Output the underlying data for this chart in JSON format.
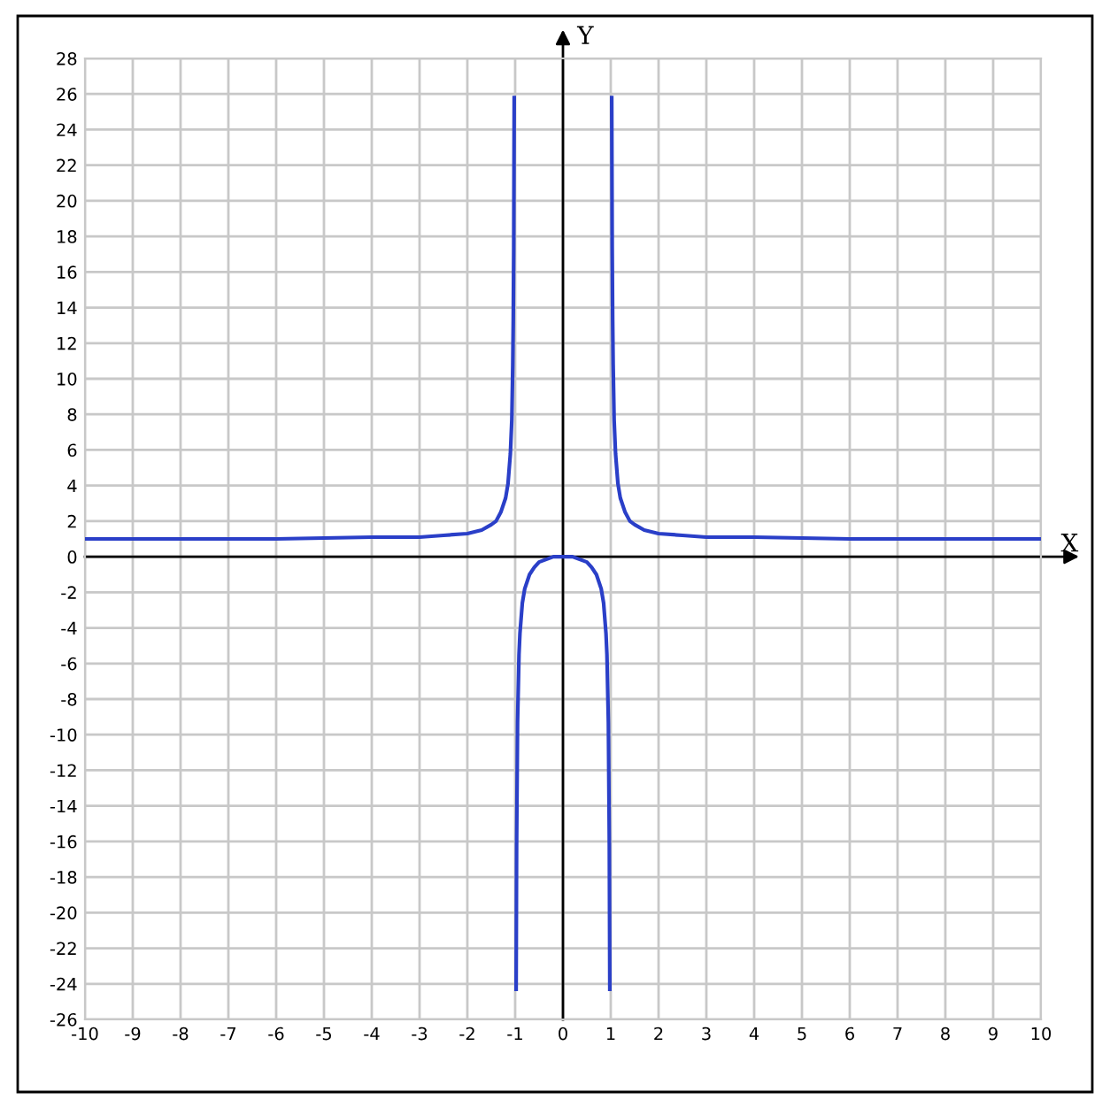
{
  "chart_data": {
    "type": "line",
    "xlabel": "X",
    "ylabel": "Y",
    "xlim": [
      -10,
      10
    ],
    "ylim": [
      -26,
      28
    ],
    "xticks": [
      -10,
      -9,
      -8,
      -7,
      -6,
      -5,
      -4,
      -3,
      -2,
      -1,
      0,
      1,
      2,
      3,
      4,
      5,
      6,
      7,
      8,
      9,
      10
    ],
    "yticks": [
      -26,
      -24,
      -22,
      -20,
      -18,
      -16,
      -14,
      -12,
      -10,
      -8,
      -6,
      -4,
      -2,
      0,
      2,
      4,
      6,
      8,
      10,
      12,
      14,
      16,
      18,
      20,
      22,
      24,
      26,
      28
    ],
    "grid": true,
    "marker": "none",
    "line_style": "solid",
    "series": [
      {
        "color": "#2a3fc8",
        "x": [
          -10,
          -8,
          -6,
          -4,
          -3,
          -2.5,
          -2,
          -1.7,
          -1.5,
          -1.4,
          -1.3,
          -1.2,
          -1.15,
          -1.1,
          -1.07,
          -1.05,
          -1.04,
          -1.03,
          -1.02
        ],
        "values": [
          1,
          1,
          1,
          1.1,
          1.1,
          1.2,
          1.3,
          1.5,
          1.8,
          2,
          2.5,
          3.3,
          4.1,
          5.8,
          7.7,
          10.8,
          13.3,
          17.4,
          25.8
        ]
      },
      {
        "color": "#2a3fc8",
        "x": [
          -0.98,
          -0.97,
          -0.95,
          -0.92,
          -0.9,
          -0.85,
          -0.8,
          -0.7,
          -0.6,
          -0.5,
          -0.4,
          -0.3,
          -0.2,
          -0.1,
          0,
          0.1,
          0.2,
          0.3,
          0.4,
          0.5,
          0.6,
          0.7,
          0.8,
          0.85,
          0.9,
          0.92,
          0.95,
          0.97,
          0.98
        ],
        "values": [
          -24.3,
          -16.2,
          -9.3,
          -5.5,
          -4.3,
          -2.6,
          -1.8,
          -1,
          -0.6,
          -0.3,
          -0.2,
          -0.1,
          0,
          0,
          0,
          0,
          0,
          -0.1,
          -0.2,
          -0.3,
          -0.6,
          -1,
          -1.8,
          -2.6,
          -4.3,
          -5.5,
          -9.3,
          -16.2,
          -24.3
        ]
      },
      {
        "color": "#2a3fc8",
        "x": [
          1.02,
          1.03,
          1.04,
          1.05,
          1.07,
          1.1,
          1.15,
          1.2,
          1.3,
          1.4,
          1.5,
          1.7,
          2,
          2.5,
          3,
          4,
          6,
          8,
          10
        ],
        "values": [
          25.8,
          17.4,
          13.3,
          10.8,
          7.7,
          5.8,
          4.1,
          3.3,
          2.5,
          2,
          1.8,
          1.5,
          1.3,
          1.2,
          1.1,
          1.1,
          1,
          1,
          1
        ]
      }
    ]
  }
}
